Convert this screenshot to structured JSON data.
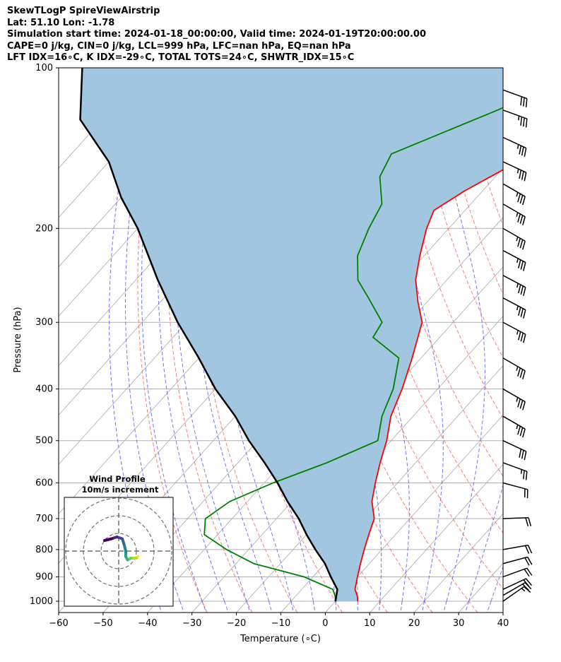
{
  "header": {
    "title": "SkewTLogP SpireViewAirstrip",
    "latlon": "Lat: 51.10   Lon: -1.78",
    "sim_time": "Simulation start time: 2024-01-18_00:00:00, Valid time: 2024-01-19T20:00:00.00",
    "indices_1": "CAPE=0 j/kg, CIN=0 j/kg, LCL=999 hPa, LFC=nan hPa, EQ=nan hPa",
    "indices_2": "LFT IDX=16∘C, K IDX=-29∘C, TOTAL TOTS=24∘C, SHWTR_IDX=15∘C"
  },
  "colors": {
    "temperature": "#ff0000",
    "dewpoint": "#008000",
    "parcel": "#000000",
    "cape_fill": "#a2c5e0",
    "dry_adiabat": "#ff6a6a",
    "moist_adiabat": "#5a5aff",
    "mixing_ratio": "#a0a0a0"
  },
  "chart_data": [
    {
      "type": "line",
      "subtype": "skew-t log-p",
      "xlabel": "Temperature (∘C)",
      "ylabel": "Pressure (hPa)",
      "xlim": [
        -60,
        40
      ],
      "ylim": [
        1050,
        100
      ],
      "y_scale": "log",
      "x_ticks": [
        "−60",
        "−50",
        "−40",
        "−30",
        "−20",
        "−10",
        "0",
        "10",
        "20",
        "30",
        "40"
      ],
      "y_ticks": [
        "100",
        "200",
        "300",
        "400",
        "500",
        "600",
        "700",
        "800",
        "900",
        "1000"
      ],
      "grid": true,
      "series": [
        {
          "key": "temperature",
          "points": [
            [
              5,
              1000
            ],
            [
              4,
              980
            ],
            [
              2,
              950
            ],
            [
              0,
              900
            ],
            [
              -2,
              850
            ],
            [
              -4,
              800
            ],
            [
              -6,
              750
            ],
            [
              -8,
              700
            ],
            [
              -12,
              650
            ],
            [
              -15,
              600
            ],
            [
              -18,
              550
            ],
            [
              -21,
              500
            ],
            [
              -25,
              450
            ],
            [
              -28,
              400
            ],
            [
              -32,
              350
            ],
            [
              -37,
              300
            ],
            [
              -42,
              275
            ],
            [
              -47,
              250
            ],
            [
              -51,
              225
            ],
            [
              -55,
              200
            ],
            [
              -57,
              185
            ],
            [
              -54,
              170
            ],
            [
              -48,
              150
            ],
            [
              -40,
              125
            ],
            [
              -35,
              110
            ],
            [
              -30,
              100
            ]
          ]
        },
        {
          "key": "dewpoint",
          "points": [
            [
              0,
              1000
            ],
            [
              -1,
              980
            ],
            [
              -3,
              950
            ],
            [
              -12,
              900
            ],
            [
              -26,
              850
            ],
            [
              -35,
              800
            ],
            [
              -43,
              750
            ],
            [
              -46,
              700
            ],
            [
              -44,
              650
            ],
            [
              -38,
              600
            ],
            [
              -30,
              550
            ],
            [
              -23,
              500
            ],
            [
              -27,
              450
            ],
            [
              -30,
              400
            ],
            [
              -35,
              350
            ],
            [
              -45,
              320
            ],
            [
              -46,
              300
            ],
            [
              -54,
              270
            ],
            [
              -60,
              250
            ],
            [
              -65,
              225
            ],
            [
              -68,
              200
            ],
            [
              -70,
              180
            ],
            [
              -76,
              160
            ],
            [
              -78,
              145
            ],
            [
              -63,
              120
            ],
            [
              -50,
              100
            ]
          ]
        },
        {
          "key": "parcel",
          "points": [
            [
              0,
              1000
            ],
            [
              -2,
              950
            ],
            [
              -6,
              900
            ],
            [
              -10,
              850
            ],
            [
              -15,
              800
            ],
            [
              -20,
              750
            ],
            [
              -25,
              700
            ],
            [
              -31,
              650
            ],
            [
              -37,
              600
            ],
            [
              -44,
              550
            ],
            [
              -52,
              500
            ],
            [
              -60,
              450
            ],
            [
              -70,
              400
            ],
            [
              -80,
              350
            ],
            [
              -92,
              300
            ],
            [
              -105,
              250
            ],
            [
              -120,
              200
            ],
            [
              -130,
              175
            ],
            [
              -140,
              150
            ],
            [
              -155,
              125
            ],
            [
              -165,
              100
            ]
          ]
        }
      ],
      "wind_barbs": [
        {
          "p": 1000,
          "speed_kt": 15,
          "dir_deg": 235
        },
        {
          "p": 975,
          "speed_kt": 20,
          "dir_deg": 240
        },
        {
          "p": 950,
          "speed_kt": 20,
          "dir_deg": 245
        },
        {
          "p": 900,
          "speed_kt": 20,
          "dir_deg": 250
        },
        {
          "p": 850,
          "speed_kt": 20,
          "dir_deg": 255
        },
        {
          "p": 800,
          "speed_kt": 20,
          "dir_deg": 260
        },
        {
          "p": 700,
          "speed_kt": 20,
          "dir_deg": 268
        },
        {
          "p": 600,
          "speed_kt": 20,
          "dir_deg": 285
        },
        {
          "p": 550,
          "speed_kt": 25,
          "dir_deg": 290
        },
        {
          "p": 500,
          "speed_kt": 30,
          "dir_deg": 295
        },
        {
          "p": 450,
          "speed_kt": 35,
          "dir_deg": 300
        },
        {
          "p": 400,
          "speed_kt": 35,
          "dir_deg": 300
        },
        {
          "p": 350,
          "speed_kt": 35,
          "dir_deg": 300
        },
        {
          "p": 300,
          "speed_kt": 35,
          "dir_deg": 298
        },
        {
          "p": 270,
          "speed_kt": 35,
          "dir_deg": 298
        },
        {
          "p": 245,
          "speed_kt": 35,
          "dir_deg": 298
        },
        {
          "p": 220,
          "speed_kt": 35,
          "dir_deg": 298
        },
        {
          "p": 200,
          "speed_kt": 35,
          "dir_deg": 300
        },
        {
          "p": 180,
          "speed_kt": 35,
          "dir_deg": 300
        },
        {
          "p": 165,
          "speed_kt": 35,
          "dir_deg": 300
        },
        {
          "p": 150,
          "speed_kt": 35,
          "dir_deg": 295
        },
        {
          "p": 135,
          "speed_kt": 35,
          "dir_deg": 295
        },
        {
          "p": 120,
          "speed_kt": 35,
          "dir_deg": 290
        },
        {
          "p": 110,
          "speed_kt": 30,
          "dir_deg": 290
        }
      ]
    },
    {
      "type": "line",
      "subtype": "hodograph",
      "title": "Wind Profile",
      "subtitle": "10m/s increment",
      "grid": true,
      "rings": [
        10,
        20,
        30
      ],
      "points": [
        [
          11,
          -3
        ],
        [
          10,
          -4
        ],
        [
          7,
          -4
        ],
        [
          5,
          -5
        ],
        [
          4,
          -3
        ],
        [
          4,
          0
        ],
        [
          3,
          4
        ],
        [
          2,
          7
        ],
        [
          -1,
          8
        ],
        [
          -4,
          7
        ],
        [
          -8,
          6
        ]
      ]
    }
  ]
}
